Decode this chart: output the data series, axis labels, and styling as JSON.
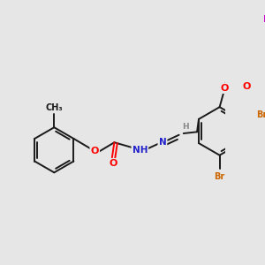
{
  "bg_color": "#e6e6e6",
  "bond_color": "#1a1a1a",
  "atom_colors": {
    "O": "#ff0000",
    "N": "#2222cc",
    "Br": "#cc6600",
    "F": "#cc00cc",
    "H": "#888888",
    "C": "#1a1a1a"
  },
  "figsize": [
    3.0,
    3.0
  ],
  "dpi": 100
}
